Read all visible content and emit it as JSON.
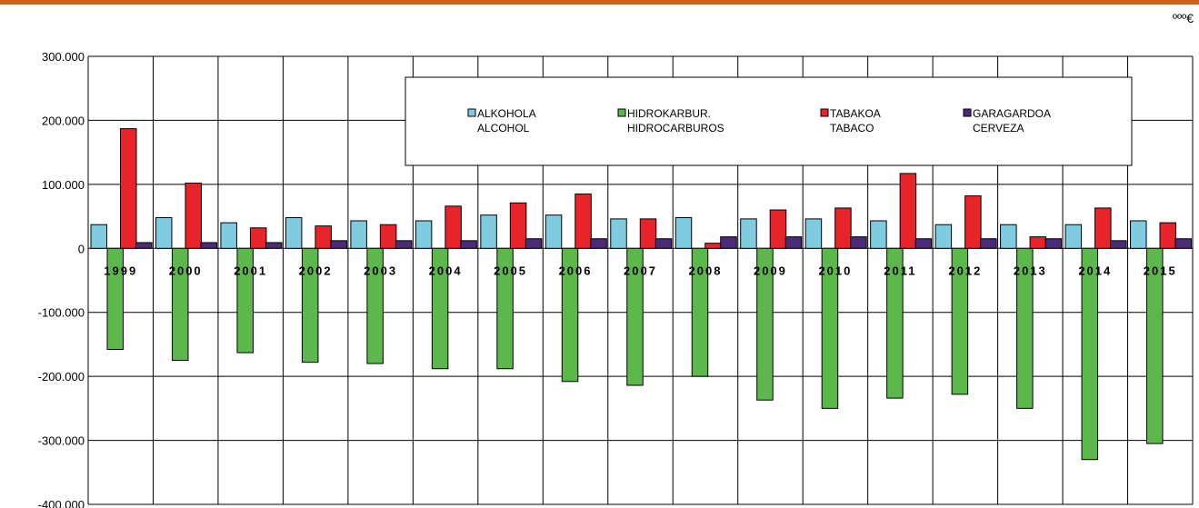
{
  "unit": "ººº€",
  "colors": {
    "alkohola": "#7fcbe0",
    "hidrokarbur": "#5cb84a",
    "tabakoa": "#e8232a",
    "garagardoa": "#4b2a78",
    "top_rule": "#c8641e",
    "grid": "#000000",
    "background": "#ffffff"
  },
  "chart_data": {
    "type": "bar",
    "title": "",
    "xlabel": "",
    "ylabel": "",
    "ylim": [
      -400000,
      300000
    ],
    "ytick_step": 100000,
    "yticks": [
      "300.000",
      "200.000",
      "100.000",
      "0",
      "-100.000",
      "-200.000",
      "-300.000",
      "-400.000"
    ],
    "grid": true,
    "legend_position": "top-center",
    "categories": [
      "1999",
      "2000",
      "2001",
      "2002",
      "2003",
      "2004",
      "2005",
      "2006",
      "2007",
      "2008",
      "2009",
      "2010",
      "2011",
      "2012",
      "2013",
      "2014",
      "2015"
    ],
    "series": [
      {
        "key": "alkohola",
        "name": "ALKOHOLA",
        "name2": "ALCOHOL",
        "values": [
          37000,
          48000,
          40000,
          48000,
          43000,
          43000,
          52000,
          52000,
          46000,
          48000,
          46000,
          46000,
          43000,
          37000,
          37000,
          37000,
          43000
        ]
      },
      {
        "key": "hidrokarbur",
        "name": "HIDROKARBUR.",
        "name2": "HIDROCARBUROS",
        "values": [
          -158000,
          -175000,
          -163000,
          -178000,
          -180000,
          -188000,
          -188000,
          -208000,
          -214000,
          -200000,
          -237000,
          -250000,
          -234000,
          -228000,
          -250000,
          -330000,
          -305000
        ]
      },
      {
        "key": "tabakoa",
        "name": "TABAKOA",
        "name2": "TABACO",
        "values": [
          187000,
          102000,
          32000,
          35000,
          37000,
          66000,
          71000,
          85000,
          46000,
          8000,
          60000,
          63000,
          117000,
          82000,
          18000,
          63000,
          40000
        ]
      },
      {
        "key": "garagardoa",
        "name": "GARAGARDOA",
        "name2": "CERVEZA",
        "values": [
          9000,
          9000,
          9000,
          12000,
          12000,
          12000,
          15000,
          15000,
          15000,
          18000,
          18000,
          18000,
          15000,
          15000,
          15000,
          12000,
          15000
        ]
      }
    ]
  }
}
